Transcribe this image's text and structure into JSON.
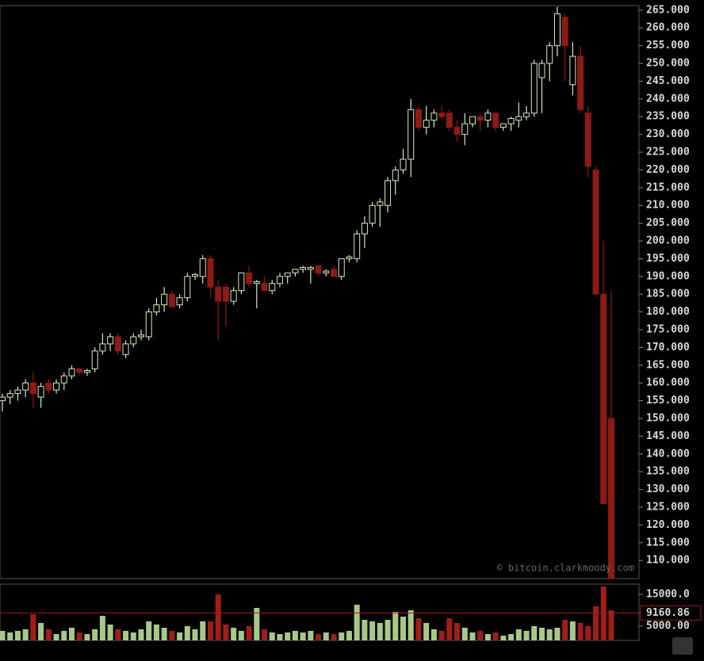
{
  "chart_data": {
    "type": "candlestick",
    "watermark": "© bitcoin.clarkmoody.com",
    "up_color": "#d4ecc0",
    "down_color": "#8e1a14",
    "volume_up_color": "#a8c888",
    "volume_down_color": "#a01e18",
    "open": [
      155,
      156,
      157,
      158,
      160,
      156,
      160,
      158,
      160,
      162,
      164,
      163,
      164,
      169,
      171,
      173,
      168,
      171,
      173,
      173,
      180,
      182,
      185,
      182,
      184,
      190,
      190,
      195,
      187,
      187,
      183,
      186,
      191,
      188,
      188,
      186,
      188,
      190,
      191,
      192,
      192,
      193,
      191,
      192,
      190,
      195,
      195,
      202,
      205,
      210,
      210,
      217,
      220,
      223,
      237,
      232,
      234,
      236,
      236,
      232,
      230,
      233,
      235,
      234,
      236,
      232,
      233,
      234,
      235,
      236,
      246,
      250,
      255,
      263,
      244,
      252,
      236,
      220,
      185,
      150
    ],
    "high": [
      157,
      158,
      159,
      161,
      163,
      160,
      161,
      161,
      163,
      165,
      164,
      164,
      170,
      174,
      174,
      174,
      172,
      174,
      175,
      181,
      184,
      187,
      186,
      185,
      191,
      191,
      196,
      196,
      189,
      188,
      187,
      191,
      193,
      189,
      190,
      189,
      191,
      191,
      192,
      193,
      193,
      193,
      192,
      193,
      195,
      196,
      203,
      207,
      211,
      212,
      218,
      221,
      226,
      240,
      238,
      238,
      237,
      238,
      237,
      234,
      236,
      235,
      236,
      237,
      236,
      233,
      235,
      239,
      238,
      251,
      251,
      256,
      266,
      264,
      256,
      255,
      238,
      221,
      200,
      186
    ],
    "low": [
      152,
      154,
      155,
      156,
      153,
      153,
      157,
      157,
      158,
      161,
      162,
      162,
      163,
      168,
      169,
      168,
      167,
      170,
      172,
      172,
      179,
      180,
      181,
      181,
      183,
      189,
      188,
      184,
      172,
      176,
      182,
      185,
      187,
      181,
      186,
      185,
      187,
      188,
      190,
      191,
      188,
      190,
      190,
      190,
      189,
      194,
      194,
      198,
      204,
      204,
      208,
      213,
      219,
      218,
      231,
      230,
      232,
      234,
      231,
      228,
      227,
      232,
      231,
      232,
      231,
      231,
      231,
      232,
      234,
      235,
      236,
      245,
      252,
      245,
      241,
      236,
      218,
      185,
      126,
      105
    ],
    "close": [
      156,
      157,
      158,
      160,
      157,
      159,
      158,
      160,
      162,
      164,
      163,
      163.5,
      169,
      171,
      173,
      169,
      171,
      173,
      173.5,
      180,
      182,
      185,
      181.5,
      184,
      190,
      190.5,
      195,
      187,
      183,
      183,
      186,
      191,
      188,
      188.5,
      186,
      188,
      190,
      191,
      192,
      192.5,
      192.5,
      191,
      191.5,
      190,
      195,
      195.5,
      202,
      205,
      210,
      211,
      217,
      220,
      223,
      237,
      232,
      234,
      236,
      235,
      232,
      230,
      233,
      235,
      234,
      236,
      232,
      233,
      234.5,
      235,
      236,
      250,
      250,
      255,
      264,
      255,
      252,
      237,
      221,
      185,
      126,
      105
    ],
    "volume": [
      3500,
      3000,
      3500,
      4000,
      8750,
      6000,
      4000,
      2500,
      3500,
      4500,
      3000,
      2500,
      4000,
      8250,
      5500,
      4000,
      3500,
      3000,
      4000,
      6500,
      5500,
      4500,
      3500,
      3000,
      5000,
      4000,
      6500,
      6500,
      15000,
      5500,
      4500,
      3500,
      5000,
      10750,
      4000,
      3000,
      2500,
      3000,
      3500,
      3000,
      3500,
      2500,
      3000,
      2500,
      3000,
      3500,
      11750,
      7000,
      6500,
      6000,
      7000,
      9500,
      8000,
      10000,
      7500,
      6000,
      4000,
      3500,
      7500,
      6000,
      4500,
      3000,
      3500,
      2500,
      3000,
      2000,
      2500,
      4000,
      3500,
      5000,
      4500,
      4000,
      4500,
      7000,
      6500,
      6000,
      5000,
      11250,
      17500,
      10000
    ],
    "volume_marker": 9160.86,
    "ylim": [
      104.9,
      266.3
    ],
    "yticks": [
      {
        "value": 110,
        "label": "110.000"
      },
      {
        "value": 115,
        "label": "115.000"
      },
      {
        "value": 120,
        "label": "120.000"
      },
      {
        "value": 125,
        "label": "125.000"
      },
      {
        "value": 130,
        "label": "130.000"
      },
      {
        "value": 135,
        "label": "135.000"
      },
      {
        "value": 140,
        "label": "140.000"
      },
      {
        "value": 145,
        "label": "145.000"
      },
      {
        "value": 150,
        "label": "150.000"
      },
      {
        "value": 155,
        "label": "155.000"
      },
      {
        "value": 160,
        "label": "160.000"
      },
      {
        "value": 165,
        "label": "165.000"
      },
      {
        "value": 170,
        "label": "170.000"
      },
      {
        "value": 175,
        "label": "175.000"
      },
      {
        "value": 180,
        "label": "180.000"
      },
      {
        "value": 185,
        "label": "185.000"
      },
      {
        "value": 190,
        "label": "190.000"
      },
      {
        "value": 195,
        "label": "195.000"
      },
      {
        "value": 200,
        "label": "200.000"
      },
      {
        "value": 205,
        "label": "205.000"
      },
      {
        "value": 210,
        "label": "210.000"
      },
      {
        "value": 215,
        "label": "215.000"
      },
      {
        "value": 220,
        "label": "220.000"
      },
      {
        "value": 225,
        "label": "225.000"
      },
      {
        "value": 230,
        "label": "230.000"
      },
      {
        "value": 235,
        "label": "235.000"
      },
      {
        "value": 240,
        "label": "240.000"
      },
      {
        "value": 245,
        "label": "245.000"
      },
      {
        "value": 250,
        "label": "250.000"
      },
      {
        "value": 255,
        "label": "255.000"
      },
      {
        "value": 260,
        "label": "260.000"
      },
      {
        "value": 265,
        "label": "265.000"
      }
    ],
    "y2lim": [
      500,
      18250
    ],
    "y2ticks": [
      {
        "value": 15000,
        "label": "15000.0"
      },
      {
        "value": 5000,
        "label": "5000.00"
      }
    ]
  }
}
